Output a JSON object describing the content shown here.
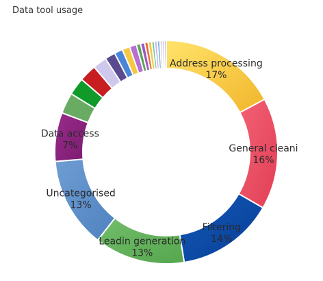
{
  "title": "Data tool usage",
  "chart_data": {
    "type": "pie",
    "variant": "donut",
    "title": "Data tool usage",
    "legend": "none",
    "slices": [
      {
        "label": "Address processing",
        "pct_text": "17%",
        "value": 17,
        "color": "#f5c842",
        "gradient": [
          "#ffe36a",
          "#f2b52b"
        ],
        "labeled": true
      },
      {
        "label": "General cleani",
        "pct_text": "16%",
        "value": 16,
        "color": "#ea4d62",
        "gradient": [
          "#f26275",
          "#e23e55"
        ],
        "labeled": true
      },
      {
        "label": "Filtering",
        "pct_text": "14%",
        "value": 14,
        "color": "#0a4aa6",
        "gradient": [
          "#1257b7",
          "#083f96"
        ],
        "labeled": true
      },
      {
        "label": "Leadin generation",
        "pct_text": "13%",
        "value": 13,
        "color": "#5fae5a",
        "gradient": [
          "#72bd6a",
          "#56a64f"
        ],
        "labeled": true
      },
      {
        "label": "Uncategorised",
        "pct_text": "13%",
        "value": 13,
        "color": "#5b8dc8",
        "gradient": [
          "#6f9dd3",
          "#4f82c0"
        ],
        "labeled": true
      },
      {
        "label": "Data access",
        "pct_text": "7%",
        "value": 7,
        "color": "#8a237d",
        "gradient": [
          "#992c8b",
          "#7b1b70"
        ],
        "labeled": true
      },
      {
        "label": "",
        "pct_text": "",
        "value": 3,
        "color": "#6aab64",
        "labeled": false
      },
      {
        "label": "",
        "pct_text": "",
        "value": 2.5,
        "color": "#0f9a2a",
        "labeled": false
      },
      {
        "label": "",
        "pct_text": "",
        "value": 2.5,
        "color": "#c81e22",
        "labeled": false
      },
      {
        "label": "",
        "pct_text": "",
        "value": 2,
        "color": "#cdc8ec",
        "labeled": false
      },
      {
        "label": "",
        "pct_text": "",
        "value": 1.5,
        "color": "#5a4b91",
        "labeled": false
      },
      {
        "label": "",
        "pct_text": "",
        "value": 1.2,
        "color": "#4a86d8",
        "labeled": false
      },
      {
        "label": "",
        "pct_text": "",
        "value": 1.1,
        "color": "#f5c842",
        "labeled": false
      },
      {
        "label": "",
        "pct_text": "",
        "value": 1,
        "color": "#b570d2",
        "labeled": false
      },
      {
        "label": "",
        "pct_text": "",
        "value": 0.6,
        "color": "#5aa35a",
        "labeled": false
      },
      {
        "label": "",
        "pct_text": "",
        "value": 0.6,
        "color": "#9b59c0",
        "labeled": false
      },
      {
        "label": "",
        "pct_text": "",
        "value": 0.5,
        "color": "#e86b3a",
        "labeled": false
      },
      {
        "label": "",
        "pct_text": "",
        "value": 0.5,
        "color": "#f2c94c",
        "labeled": false
      },
      {
        "label": "",
        "pct_text": "",
        "value": 0.4,
        "color": "#6fcf97",
        "labeled": false
      },
      {
        "label": "",
        "pct_text": "",
        "value": 0.4,
        "color": "#c3b4e6",
        "labeled": false
      },
      {
        "label": "",
        "pct_text": "",
        "value": 0.4,
        "color": "#7fb3e6",
        "labeled": false
      },
      {
        "label": "",
        "pct_text": "",
        "value": 0.3,
        "color": "#b9b9b9",
        "labeled": false
      },
      {
        "label": "",
        "pct_text": "",
        "value": 0.3,
        "color": "#d9a6e0",
        "labeled": false
      },
      {
        "label": "",
        "pct_text": "",
        "value": 0.3,
        "color": "#a8c8e8",
        "labeled": false
      }
    ]
  }
}
